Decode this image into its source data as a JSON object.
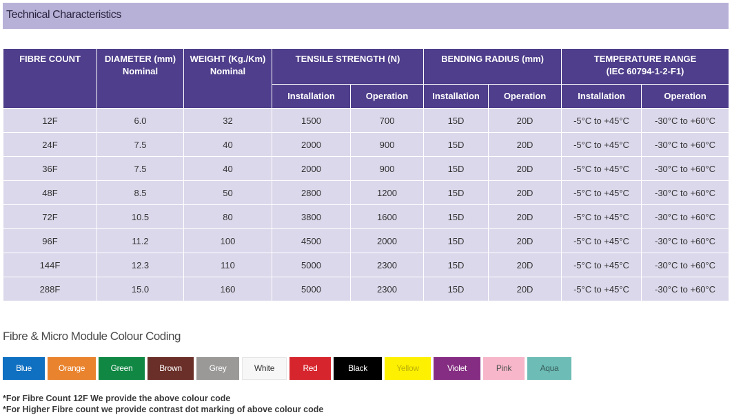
{
  "section_title": "Technical Characteristics",
  "table": {
    "headers": {
      "fibre_count": "FIBRE COUNT",
      "diameter": "DIAMETER (mm)",
      "diameter_sub": "Nominal",
      "weight": "WEIGHT (Kg./Km)",
      "weight_sub": "Nominal",
      "tensile": "TENSILE STRENGTH (N)",
      "bending": "BENDING RADIUS (mm)",
      "temperature": "TEMPERATURE RANGE",
      "temperature_sub": "(IEC 60794-1-2-F1)",
      "installation": "Installation",
      "operation": "Operation"
    },
    "rows": [
      [
        "12F",
        "6.0",
        "32",
        "1500",
        "700",
        "15D",
        "20D",
        "-5°C to +45°C",
        "-30°C to +60°C"
      ],
      [
        "24F",
        "7.5",
        "40",
        "2000",
        "900",
        "15D",
        "20D",
        "-5°C to +45°C",
        "-30°C to +60°C"
      ],
      [
        "36F",
        "7.5",
        "40",
        "2000",
        "900",
        "15D",
        "20D",
        "-5°C to +45°C",
        "-30°C to +60°C"
      ],
      [
        "48F",
        "8.5",
        "50",
        "2800",
        "1200",
        "15D",
        "20D",
        "-5°C to +45°C",
        "-30°C to +60°C"
      ],
      [
        "72F",
        "10.5",
        "80",
        "3800",
        "1600",
        "15D",
        "20D",
        "-5°C to +45°C",
        "-30°C to +60°C"
      ],
      [
        "96F",
        "11.2",
        "100",
        "4500",
        "2000",
        "15D",
        "20D",
        "-5°C to +45°C",
        "-30°C to +60°C"
      ],
      [
        "144F",
        "12.3",
        "110",
        "5000",
        "2300",
        "15D",
        "20D",
        "-5°C to +45°C",
        "-30°C to +60°C"
      ],
      [
        "288F",
        "15.0",
        "160",
        "5000",
        "2300",
        "15D",
        "20D",
        "-5°C to +45°C",
        "-30°C to +60°C"
      ]
    ]
  },
  "colour_coding": {
    "title": "Fibre & Micro Module Colour Coding",
    "swatches": [
      {
        "label": "Blue",
        "color": "#0f6fc0",
        "text_color": "#ffffff"
      },
      {
        "label": "Orange",
        "color": "#e9832e",
        "text_color": "#ffffff"
      },
      {
        "label": "Green",
        "color": "#108743",
        "text_color": "#ffffff"
      },
      {
        "label": "Brown",
        "color": "#6a2f28",
        "text_color": "#ffffff"
      },
      {
        "label": "Grey",
        "color": "#9a9998",
        "text_color": "#ffffff"
      },
      {
        "label": "White",
        "color": "#f7f7f7",
        "text_color": "#333333"
      },
      {
        "label": "Red",
        "color": "#d6252d",
        "text_color": "#ffffff"
      },
      {
        "label": "Black",
        "color": "#000000",
        "text_color": "#ffffff"
      },
      {
        "label": "Yellow",
        "color": "#fdf000",
        "text_color": "#bdb20a"
      },
      {
        "label": "Violet",
        "color": "#852d82",
        "text_color": "#ffffff"
      },
      {
        "label": "Pink",
        "color": "#f7b6c9",
        "text_color": "#555555"
      },
      {
        "label": "Aqua",
        "color": "#6dbcb6",
        "text_color": "#3a5e5c"
      }
    ]
  },
  "notes": [
    "*For Fibre Count 12F We provide the above colour code",
    "*For Higher Fibre count we provide contrast dot marking of above colour code"
  ]
}
